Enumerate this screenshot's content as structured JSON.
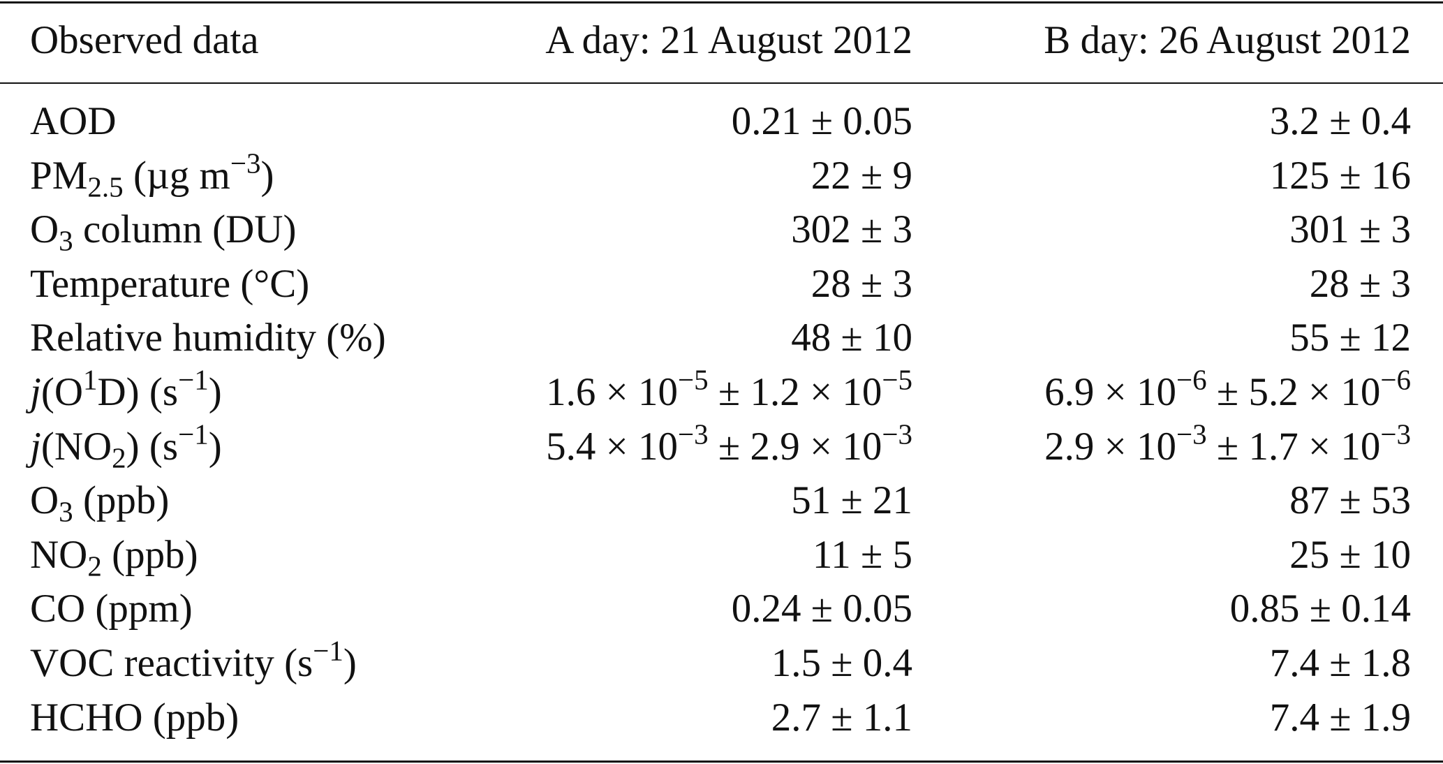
{
  "table": {
    "header": [
      "Observed data",
      "A day: 21 August 2012",
      "B day: 26 August 2012"
    ],
    "rows": [
      [
        [
          "AOD"
        ],
        [
          "0.21 ± 0.05"
        ],
        [
          "3.2 ± 0.4"
        ]
      ],
      [
        [
          "PM",
          {
            "sub": "2.5"
          },
          " (µg m",
          {
            "sup": "−3"
          },
          ")"
        ],
        [
          "22 ± 9"
        ],
        [
          "125 ± 16"
        ]
      ],
      [
        [
          "O",
          {
            "sub": "3"
          },
          " column (DU)"
        ],
        [
          "302 ± 3"
        ],
        [
          "301 ± 3"
        ]
      ],
      [
        [
          "Temperature (°C)"
        ],
        [
          "28 ± 3"
        ],
        [
          "28 ± 3"
        ]
      ],
      [
        [
          "Relative humidity (%)"
        ],
        [
          "48 ± 10"
        ],
        [
          "55 ± 12"
        ]
      ],
      [
        [
          {
            "i": "j"
          },
          "(O",
          {
            "sup": "1"
          },
          "D) (s",
          {
            "sup": "−1"
          },
          ")"
        ],
        [
          "1.6 × 10",
          {
            "sup": "−5"
          },
          " ± 1.2 × 10",
          {
            "sup": "−5"
          }
        ],
        [
          "6.9 × 10",
          {
            "sup": "−6"
          },
          " ± 5.2 × 10",
          {
            "sup": "−6"
          }
        ]
      ],
      [
        [
          {
            "i": "j"
          },
          "(NO",
          {
            "sub": "2"
          },
          ") (s",
          {
            "sup": "−1"
          },
          ")"
        ],
        [
          "5.4 × 10",
          {
            "sup": "−3"
          },
          " ± 2.9 × 10",
          {
            "sup": "−3"
          }
        ],
        [
          "2.9 × 10",
          {
            "sup": "−3"
          },
          " ± 1.7 × 10",
          {
            "sup": "−3"
          }
        ]
      ],
      [
        [
          "O",
          {
            "sub": "3"
          },
          " (ppb)"
        ],
        [
          "51 ± 21"
        ],
        [
          "87 ± 53"
        ]
      ],
      [
        [
          "NO",
          {
            "sub": "2"
          },
          " (ppb)"
        ],
        [
          "11 ± 5"
        ],
        [
          "25 ± 10"
        ]
      ],
      [
        [
          "CO (ppm)"
        ],
        [
          "0.24 ± 0.05"
        ],
        [
          "0.85 ± 0.14"
        ]
      ],
      [
        [
          "VOC reactivity (s",
          {
            "sup": "−1"
          },
          ")"
        ],
        [
          "1.5 ± 0.4"
        ],
        [
          "7.4 ± 1.8"
        ]
      ],
      [
        [
          "HCHO (ppb)"
        ],
        [
          "2.7 ± 1.1"
        ],
        [
          "7.4 ± 1.9"
        ]
      ]
    ]
  }
}
